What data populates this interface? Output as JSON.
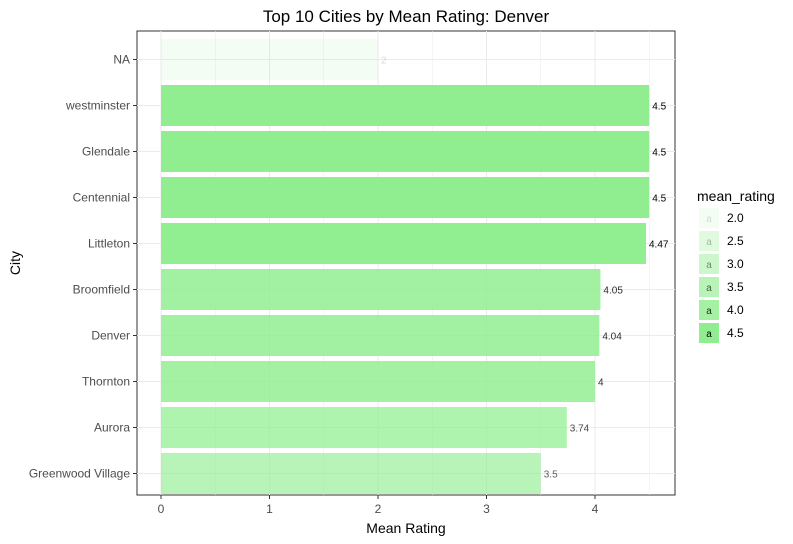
{
  "chart_data": {
    "type": "bar",
    "orientation": "horizontal",
    "title": "Top 10 Cities by Mean Rating: Denver",
    "xlabel": "Mean Rating",
    "ylabel": "City",
    "xlim": [
      0,
      4.5
    ],
    "x_ticks": [
      "0",
      "1",
      "2",
      "3",
      "4"
    ],
    "grid": true,
    "legend_position": "right",
    "categories": [
      "NA",
      "westminster",
      "Glendale",
      "Centennial",
      "Littleton",
      "Broomfield",
      "Denver",
      "Thornton",
      "Aurora",
      "Greenwood Village"
    ],
    "values": [
      2,
      4.5,
      4.5,
      4.5,
      4.47,
      4.05,
      4.04,
      4,
      3.74,
      3.5
    ],
    "data_labels": [
      "2",
      "4.5",
      "4.5",
      "4.5",
      "4.47",
      "4.05",
      "4.04",
      "4",
      "3.74",
      "3.5"
    ],
    "fill_color": "#90EE90",
    "legend": {
      "title": "mean_rating",
      "key_glyph": "a",
      "entries": [
        {
          "label": "2.0",
          "value": 2.0
        },
        {
          "label": "2.5",
          "value": 2.5
        },
        {
          "label": "3.0",
          "value": 3.0
        },
        {
          "label": "3.5",
          "value": 3.5
        },
        {
          "label": "4.0",
          "value": 4.0
        },
        {
          "label": "4.5",
          "value": 4.5
        }
      ]
    }
  }
}
